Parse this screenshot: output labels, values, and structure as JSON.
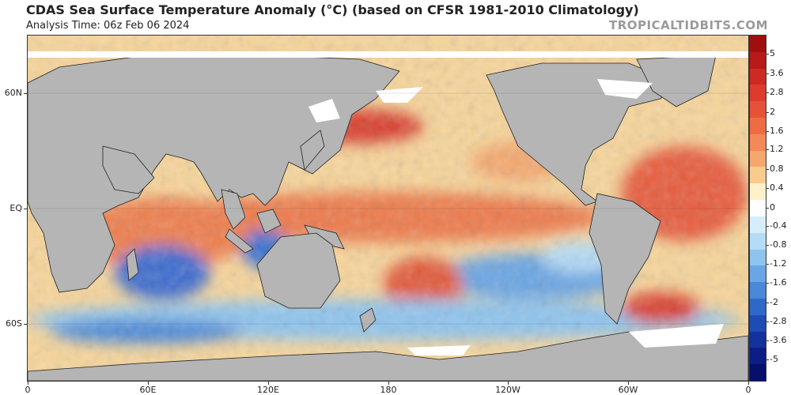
{
  "header": {
    "title": "CDAS Sea Surface Temperature Anomaly (°C) (based on CFSR 1981-2010 Climatology)",
    "analysis_time": "Analysis Time: 06z Feb 06 2024",
    "brand": "TROPICALTIDBITS.COM"
  },
  "map": {
    "lat_labels": [
      "60N",
      "EQ",
      "60S"
    ],
    "lon_labels": [
      "0",
      "60E",
      "120E",
      "180",
      "120W",
      "60W",
      "0"
    ],
    "land_color": "#b5b5b5",
    "ice_color": "#ffffff"
  },
  "colorbar": {
    "labels": [
      "5",
      "3.6",
      "2.8",
      "2",
      "1.6",
      "1.2",
      "0.8",
      "0.4",
      "0",
      "-0.4",
      "-0.8",
      "-1.2",
      "-1.6",
      "-2",
      "-2.8",
      "-3.6",
      "-5"
    ],
    "colors": [
      "#a00f0f",
      "#b81a1a",
      "#cc2a22",
      "#dc3c2c",
      "#e65238",
      "#ee6c44",
      "#f28a58",
      "#f5a86e",
      "#f9cc8e",
      "#fff2c8",
      "#ffffff",
      "#d6eefc",
      "#b4dcf6",
      "#8ec4ee",
      "#6aa6e4",
      "#4a88d8",
      "#2f69c8",
      "#1d4cb4",
      "#13329c",
      "#0a1e84",
      "#04106a"
    ]
  }
}
